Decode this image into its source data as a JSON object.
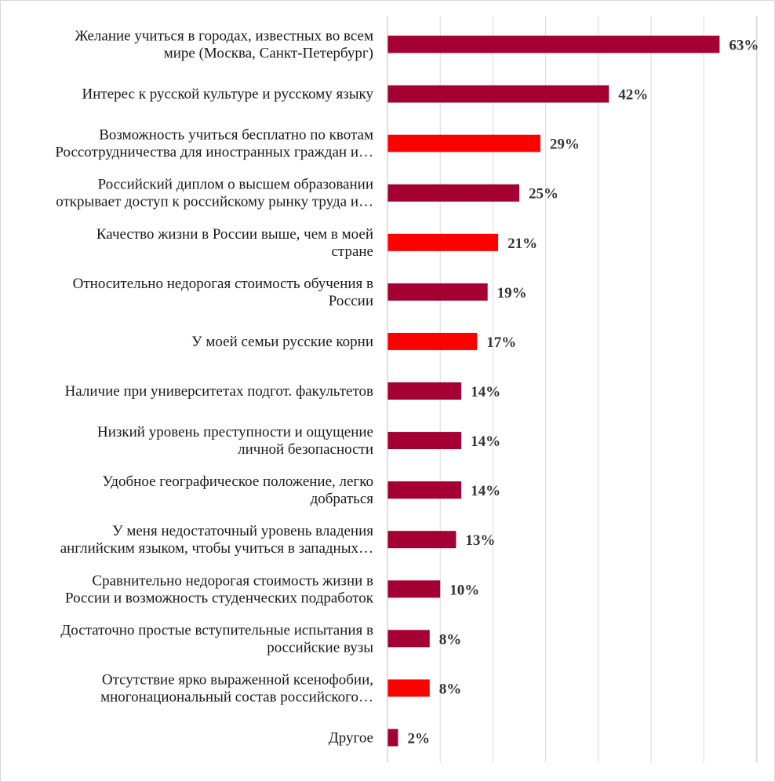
{
  "chart_data": {
    "type": "bar",
    "orientation": "horizontal",
    "value_suffix": "%",
    "xlim": [
      0,
      70
    ],
    "grid": "vertical",
    "legend": "none",
    "colors": {
      "default": "#a50034",
      "highlight": "#ff0000"
    },
    "categories": [
      [
        "Желание учиться в городах, известных во всем",
        "мире (Москва, Санкт-Петербург)"
      ],
      [
        "Интерес к русской культуре и русскому языку"
      ],
      [
        "Возможность учиться бесплатно по квотам",
        "Россотрудничества для иностранных граждан и…"
      ],
      [
        "Российский диплом о высшем образовании",
        "открывает доступ к российскому рынку труда и…"
      ],
      [
        "Качество жизни в России выше, чем в моей",
        "стране"
      ],
      [
        "Относительно недорогая стоимость обучения в",
        "России"
      ],
      [
        "У моей семьи русские корни"
      ],
      [
        "Наличие при университетах подгот. факультетов"
      ],
      [
        "Низкий уровень преступности и ощущение",
        "личной безопасности"
      ],
      [
        "Удобное географическое положение, легко",
        "добраться"
      ],
      [
        "У меня недостаточный уровень владения",
        "английским языком, чтобы учиться в западных…"
      ],
      [
        "Сравнительно недорогая стоимость жизни в",
        "России и возможность студенческих подработок"
      ],
      [
        "Достаточно простые вступительные испытания в",
        "российские вузы"
      ],
      [
        "Отсутствие ярко выраженной ксенофобии,",
        "многонациональный состав российского…"
      ],
      [
        "Другое"
      ]
    ],
    "values": [
      63,
      42,
      29,
      25,
      21,
      19,
      17,
      14,
      14,
      14,
      13,
      10,
      8,
      8,
      2
    ],
    "highlight": [
      false,
      false,
      true,
      false,
      true,
      false,
      true,
      false,
      false,
      false,
      false,
      false,
      false,
      true,
      false
    ]
  }
}
